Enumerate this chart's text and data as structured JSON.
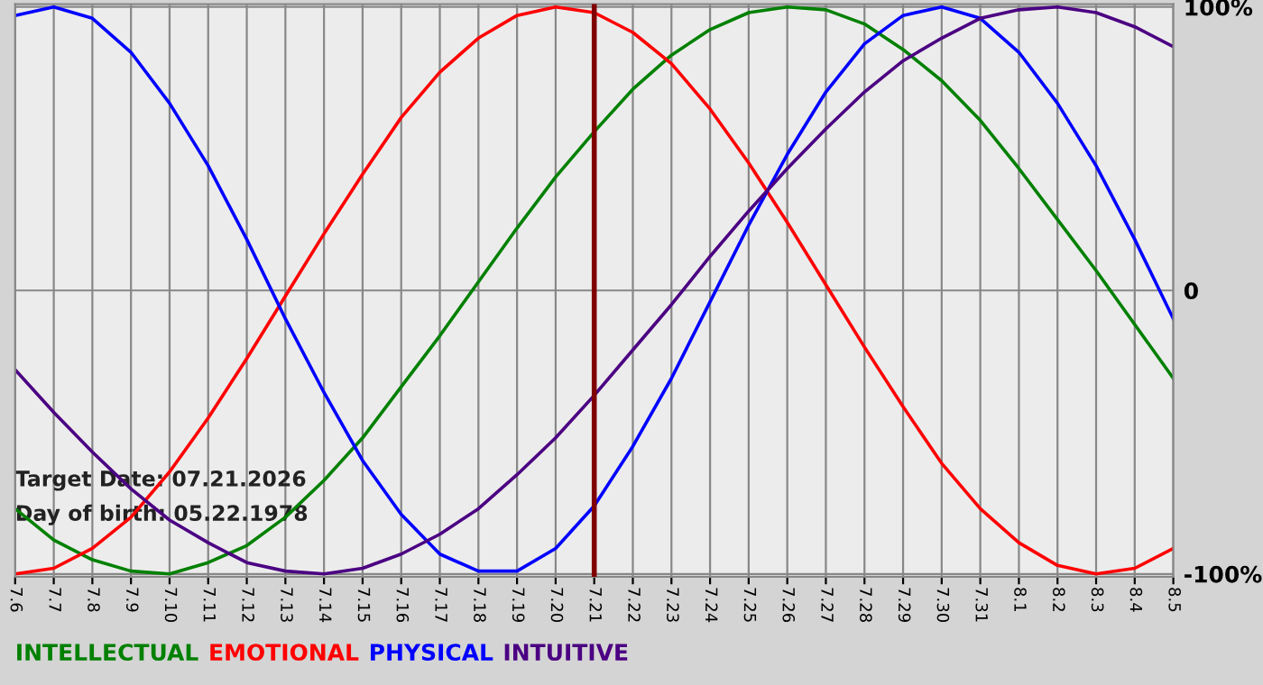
{
  "chart_data": {
    "type": "line",
    "categories": [
      "7.6",
      "7.7",
      "7.8",
      "7.9",
      "7.10",
      "7.11",
      "7.12",
      "7.13",
      "7.14",
      "7.15",
      "7.16",
      "7.17",
      "7.18",
      "7.19",
      "7.20",
      "7.21",
      "7.22",
      "7.23",
      "7.24",
      "7.25",
      "7.26",
      "7.27",
      "7.28",
      "7.29",
      "7.30",
      "7.31",
      "8.1",
      "8.2",
      "8.3",
      "8.4",
      "8.5"
    ],
    "series": [
      {
        "name": "INTELLECTUAL",
        "color": "#008000",
        "values": [
          -77,
          -88,
          -95,
          -99,
          -100,
          -96,
          -90,
          -80,
          -67,
          -52,
          -34,
          -16,
          3,
          22,
          40,
          56,
          71,
          83,
          92,
          98,
          100,
          99,
          94,
          85,
          74,
          60,
          43,
          25,
          7,
          -12,
          -31
        ]
      },
      {
        "name": "EMOTIONAL",
        "color": "#ff0000",
        "values": [
          -100,
          -98,
          -91,
          -80,
          -64,
          -45,
          -24,
          -2,
          20,
          41,
          61,
          77,
          89,
          97,
          100,
          98,
          91,
          80,
          64,
          45,
          24,
          2,
          -20,
          -41,
          -61,
          -77,
          -89,
          -97,
          -100,
          -98,
          -91
        ]
      },
      {
        "name": "PHYSICAL",
        "color": "#0000ff",
        "values": [
          97,
          100,
          96,
          84,
          66,
          44,
          18,
          -10,
          -36,
          -60,
          -79,
          -93,
          -99,
          -99,
          -91,
          -76,
          -55,
          -31,
          -4,
          23,
          48,
          70,
          87,
          97,
          100,
          96,
          84,
          66,
          44,
          18,
          -10
        ]
      },
      {
        "name": "INTUITIVE",
        "color": "#4b0082",
        "values": [
          -28,
          -43,
          -57,
          -70,
          -81,
          -89,
          -96,
          -99,
          -100,
          -98,
          -93,
          -86,
          -77,
          -65,
          -52,
          -37,
          -21,
          -5,
          12,
          28,
          43,
          57,
          70,
          81,
          89,
          96,
          99,
          100,
          98,
          93,
          86
        ]
      }
    ],
    "ylim": [
      -101,
      101
    ],
    "yticks": [
      {
        "value": -100,
        "label": "-100%"
      },
      0,
      {
        "value": 100,
        "label": "100%"
      }
    ],
    "ref_lines": [
      {
        "axis": "x",
        "value": "7.21",
        "color": "#800000"
      }
    ],
    "annotations": [
      "Target Date: 07.21.2026",
      "Day of birth: 05.22.1978"
    ],
    "grid": true,
    "legend": "bottom",
    "marker": "none",
    "line_style": "solid"
  }
}
